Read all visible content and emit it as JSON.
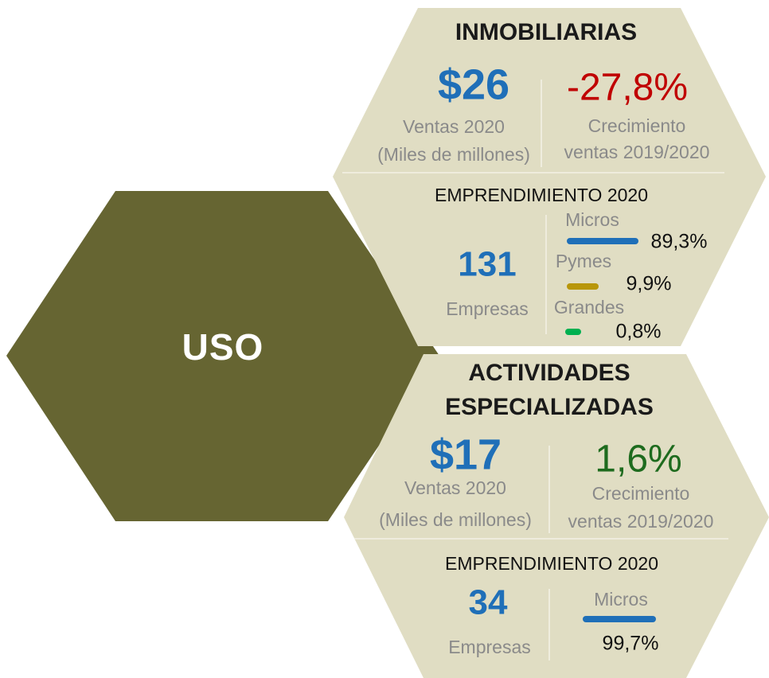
{
  "center": {
    "label": "USO"
  },
  "sectors": [
    {
      "title": "INMOBILIARIAS",
      "sales": "$26",
      "sales_label": [
        "Ventas 2020",
        "(Miles de millones)"
      ],
      "growth": "-27,8%",
      "growth_label": [
        "Crecimiento",
        "ventas 2019/2020"
      ],
      "entrepreneurship_title": "EMPRENDIMIENTO 2020",
      "companies": "131",
      "companies_label": "Empresas",
      "sizes": [
        {
          "name": "Micros",
          "share": "89,3%"
        },
        {
          "name": "Pymes",
          "share": "9,9%"
        },
        {
          "name": "Grandes",
          "share": "0,8%"
        }
      ]
    },
    {
      "title": [
        "ACTIVIDADES",
        "ESPECIALIZADAS"
      ],
      "sales": "$17",
      "sales_label": [
        "Ventas 2020",
        "(Miles de millones)"
      ],
      "growth": "1,6%",
      "growth_label": [
        "Crecimiento",
        "ventas 2019/2020"
      ],
      "entrepreneurship_title": "EMPRENDIMIENTO 2020",
      "companies": "34",
      "companies_label": "Empresas",
      "sizes": [
        {
          "name": "Micros",
          "share": "99,7%"
        }
      ]
    }
  ]
}
